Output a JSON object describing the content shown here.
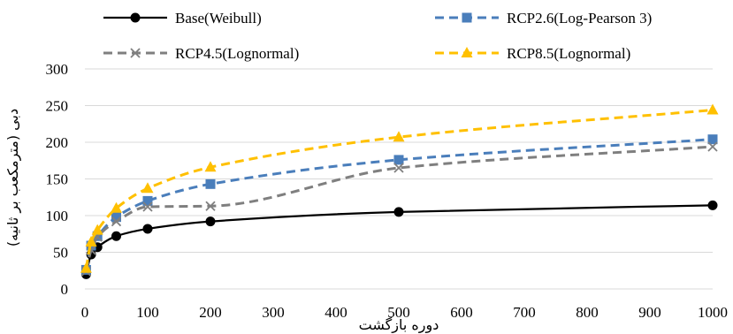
{
  "chart_data": {
    "type": "line",
    "xlabel": "دوره بازگشت",
    "ylabel": "دبی (مترمکعب بر ثانیه)",
    "xlim": [
      0,
      1000
    ],
    "ylim": [
      0,
      300
    ],
    "xticks": [
      "0",
      "100",
      "200",
      "300",
      "400",
      "500",
      "600",
      "700",
      "800",
      "900",
      "1000"
    ],
    "yticks": [
      "0",
      "50",
      "100",
      "150",
      "200",
      "250",
      "300"
    ],
    "grid": "horizontal",
    "legend_position": "top",
    "series": [
      {
        "name": "Base(Weibull)",
        "color": "#000000",
        "dash": "solid",
        "marker": "circle",
        "x": [
          2,
          10,
          20,
          50,
          100,
          200,
          500,
          1000
        ],
        "y": [
          20,
          47,
          57,
          72,
          82,
          92,
          105,
          114
        ]
      },
      {
        "name": "RCP2.6(Log-Pearson 3)",
        "color": "#4a7ebb",
        "dash": "dashed",
        "marker": "square",
        "x": [
          2,
          10,
          20,
          50,
          100,
          200,
          500,
          1000
        ],
        "y": [
          26,
          59,
          72,
          98,
          120,
          143,
          176,
          204
        ]
      },
      {
        "name": "RCP4.5(Lognormal)",
        "color": "#7f7f7f",
        "dash": "dashed",
        "marker": "x",
        "x": [
          2,
          10,
          20,
          50,
          100,
          200,
          500,
          1000
        ],
        "y": [
          24,
          53,
          71,
          92,
          112,
          113,
          165,
          194
        ]
      },
      {
        "name": "RCP8.5(Lognormal)",
        "color": "#ffc000",
        "dash": "dashed",
        "marker": "triangle",
        "x": [
          2,
          10,
          20,
          50,
          100,
          200,
          500,
          1000
        ],
        "y": [
          28,
          64,
          80,
          110,
          137,
          166,
          207,
          244
        ]
      }
    ]
  }
}
